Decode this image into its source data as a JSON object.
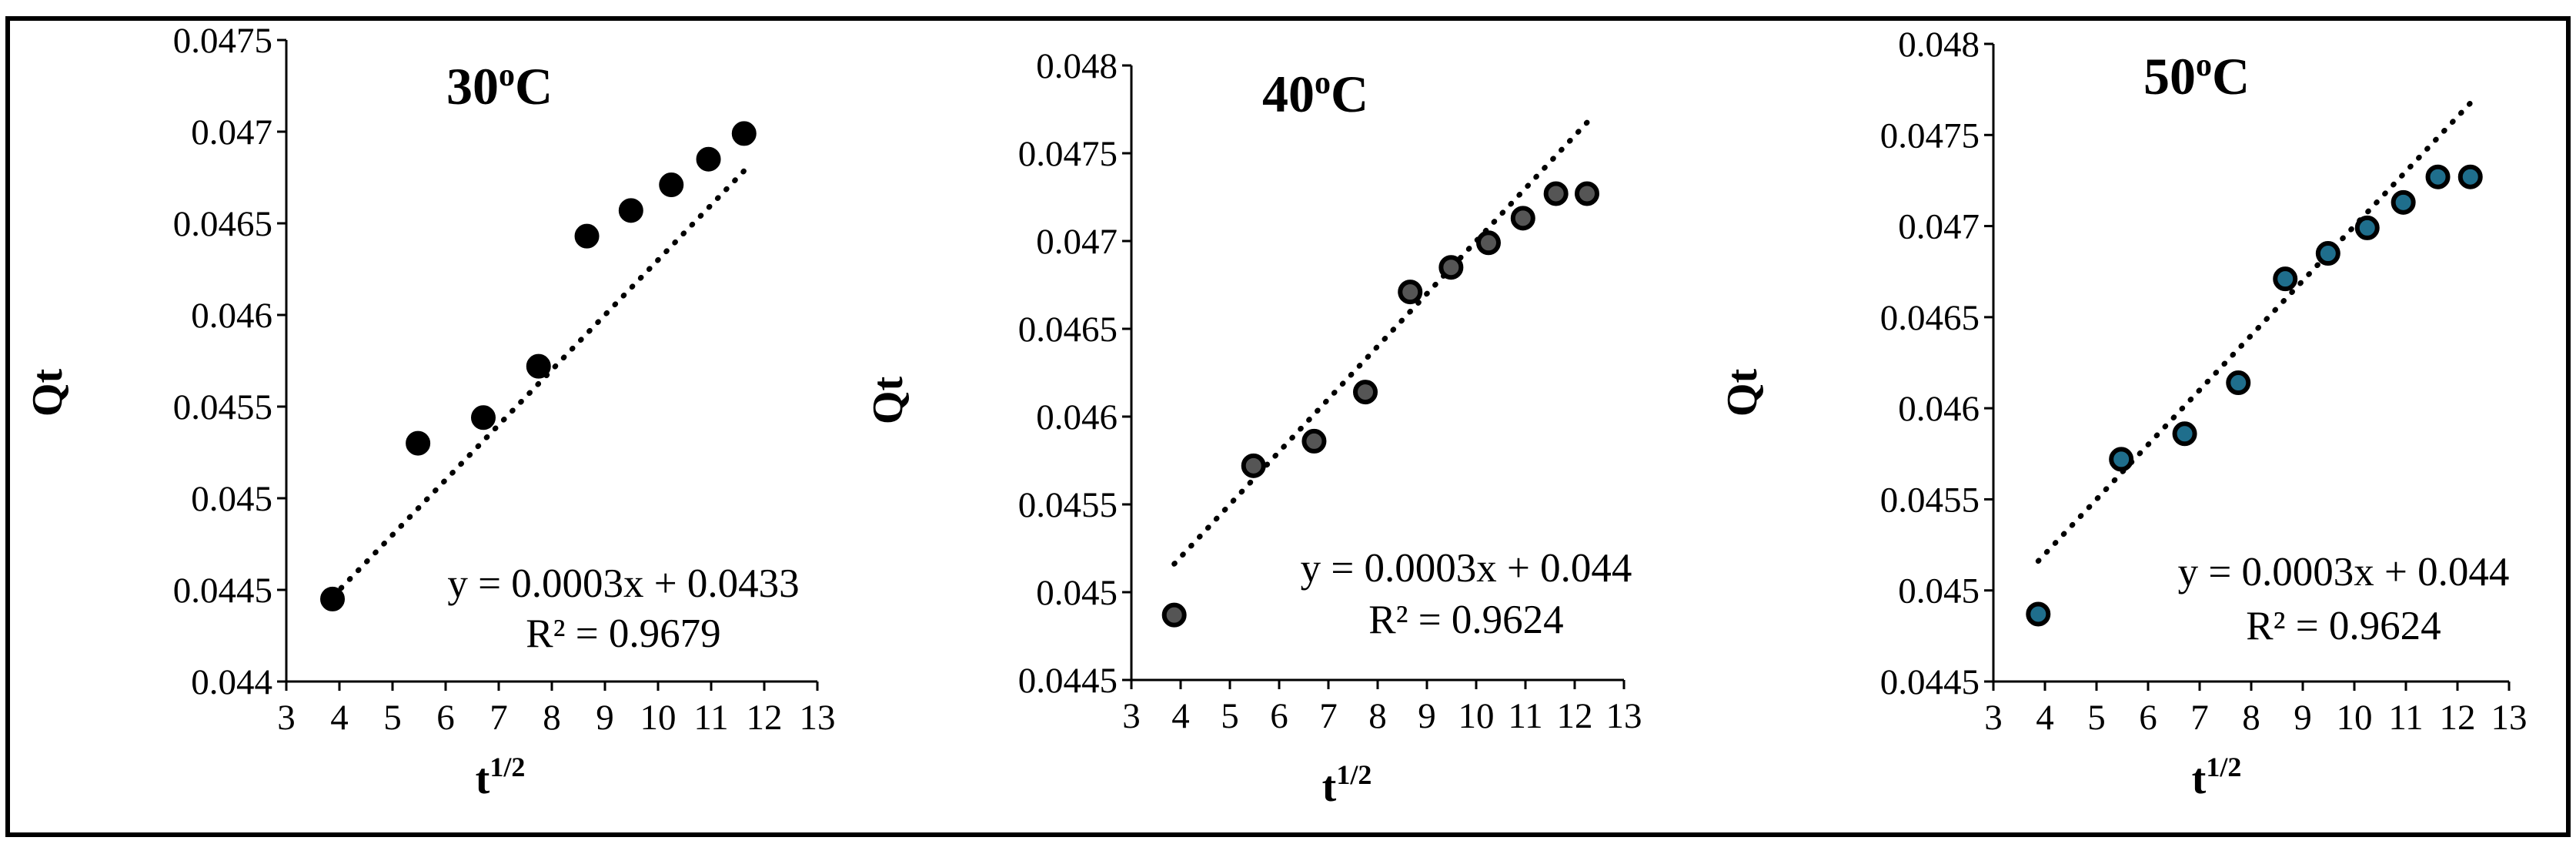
{
  "chart_data": [
    {
      "type": "scatter",
      "title": "30",
      "title_sup": "o",
      "title_suffix": "C",
      "xlabel": "t",
      "xlabel_sup": "1/2",
      "ylabel": "Qt",
      "xlim": [
        3,
        13
      ],
      "ylim": [
        0.044,
        0.0475
      ],
      "xticks": [
        "3",
        "4",
        "5",
        "6",
        "7",
        "8",
        "9",
        "10",
        "11",
        "12",
        "13"
      ],
      "yticks": [
        "0.044",
        "0.0445",
        "0.045",
        "0.0455",
        "0.046",
        "0.0465",
        "0.047",
        "0.0475"
      ],
      "x": [
        3.87,
        5.48,
        6.71,
        7.75,
        8.66,
        9.49,
        10.25,
        10.95,
        11.62
      ],
      "y": [
        0.04445,
        0.0453,
        0.04544,
        0.04572,
        0.04643,
        0.04657,
        0.04671,
        0.04685,
        0.04699
      ],
      "marker_color": "#000000",
      "trendline": {
        "slope": 0.0003,
        "intercept": 0.0433,
        "x_range": [
          3.87,
          11.62
        ]
      },
      "equation": "y = 0.0003x + 0.0433",
      "r_squared": "R² = 0.9679",
      "grid": false
    },
    {
      "type": "scatter",
      "title": "40",
      "title_sup": "o",
      "title_suffix": "C",
      "xlabel": "t",
      "xlabel_sup": "1/2",
      "ylabel": "Qt",
      "xlim": [
        3,
        13
      ],
      "ylim": [
        0.0445,
        0.048
      ],
      "xticks": [
        "3",
        "4",
        "5",
        "6",
        "7",
        "8",
        "9",
        "10",
        "11",
        "12",
        "13"
      ],
      "yticks": [
        "0.0445",
        "0.045",
        "0.0455",
        "0.046",
        "0.0465",
        "0.047",
        "0.0475",
        "0.048"
      ],
      "x": [
        3.87,
        5.48,
        6.71,
        7.75,
        8.66,
        9.49,
        10.25,
        10.95,
        11.62,
        12.25
      ],
      "y": [
        0.04487,
        0.04572,
        0.04586,
        0.04614,
        0.04671,
        0.04685,
        0.04699,
        0.04713,
        0.04727,
        0.04727
      ],
      "marker_color": "#555555",
      "trendline": {
        "slope": 0.0003,
        "intercept": 0.044,
        "x_range": [
          3.87,
          12.25
        ]
      },
      "equation": "y = 0.0003x + 0.044",
      "r_squared": "R² = 0.9624",
      "grid": false
    },
    {
      "type": "scatter",
      "title": "50",
      "title_sup": "o",
      "title_suffix": "C",
      "xlabel": "t",
      "xlabel_sup": "1/2",
      "ylabel": "Qt",
      "xlim": [
        3,
        13
      ],
      "ylim": [
        0.0445,
        0.048
      ],
      "xticks": [
        "3",
        "4",
        "5",
        "6",
        "7",
        "8",
        "9",
        "10",
        "11",
        "12",
        "13"
      ],
      "yticks": [
        "0.0445",
        "0.045",
        "0.0455",
        "0.046",
        "0.0465",
        "0.047",
        "0.0475",
        "0.048"
      ],
      "x": [
        3.87,
        5.48,
        6.71,
        7.75,
        8.66,
        9.49,
        10.25,
        10.95,
        11.62,
        12.25
      ],
      "y": [
        0.04487,
        0.04572,
        0.04586,
        0.04614,
        0.04671,
        0.04685,
        0.04699,
        0.04713,
        0.04727,
        0.04727
      ],
      "marker_color": "#1f6e8c",
      "trendline": {
        "slope": 0.0003,
        "intercept": 0.044,
        "x_range": [
          3.87,
          12.25
        ]
      },
      "equation": "y = 0.0003x + 0.044",
      "r_squared": "R² = 0.9624",
      "grid": false
    }
  ]
}
